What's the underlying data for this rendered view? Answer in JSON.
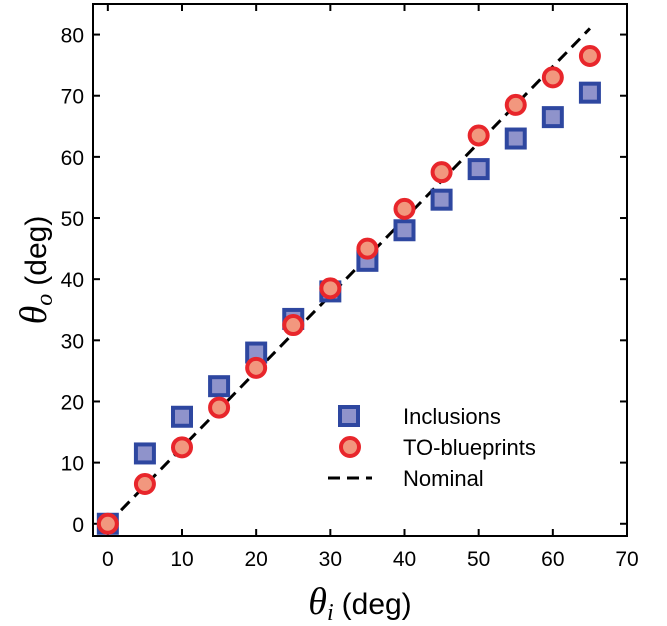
{
  "chart_data": {
    "type": "scatter",
    "title": "",
    "xlabel": {
      "symbol": "θ",
      "sub": "i",
      "unit": "(deg)"
    },
    "ylabel": {
      "symbol": "θ",
      "sub": "o",
      "unit": "(deg)"
    },
    "xlim": [
      -2,
      70
    ],
    "ylim": [
      -2,
      85
    ],
    "xticks": [
      0,
      10,
      20,
      30,
      40,
      50,
      60,
      70
    ],
    "yticks": [
      0,
      10,
      20,
      30,
      40,
      50,
      60,
      70,
      80
    ],
    "grid": false,
    "legend_position": "bottom-right",
    "series": [
      {
        "name": "Inclusions",
        "marker": "square",
        "fill": "#8f93cb",
        "stroke": "#2e47a0",
        "x": [
          0,
          5,
          10,
          15,
          20,
          25,
          30,
          35,
          40,
          45,
          50,
          55,
          60,
          65
        ],
        "y": [
          0,
          11.5,
          17.5,
          22.5,
          28,
          33.5,
          38,
          43,
          48,
          53,
          58,
          63,
          66.5,
          70.5
        ]
      },
      {
        "name": "TO-blueprints",
        "marker": "circle",
        "fill": "#f2977e",
        "stroke": "#e8262b",
        "x": [
          0,
          5,
          10,
          15,
          20,
          25,
          30,
          35,
          40,
          45,
          50,
          55,
          60,
          65
        ],
        "y": [
          0,
          6.5,
          12.5,
          19,
          25.5,
          32.5,
          38.5,
          45,
          51.5,
          57.5,
          63.5,
          68.5,
          73,
          76.5
        ]
      },
      {
        "name": "Nominal",
        "marker": "dashed-line",
        "stroke": "#000000",
        "x": [
          0,
          65
        ],
        "y": [
          0,
          81
        ]
      }
    ]
  }
}
